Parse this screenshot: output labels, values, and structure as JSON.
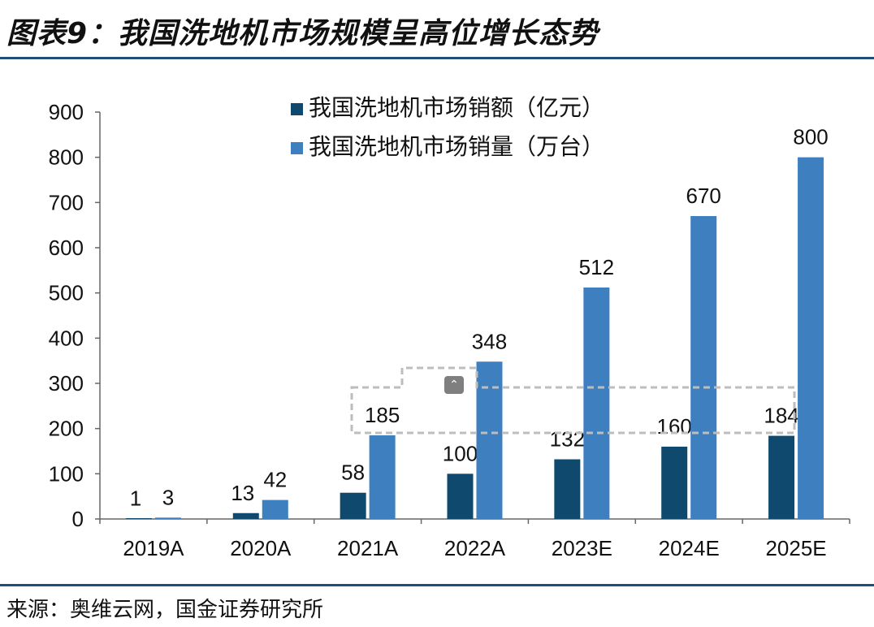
{
  "title": "图表9：我国洗地机市场规模呈高位增长态势",
  "source": "来源：奥维云网，国金证券研究所",
  "colors": {
    "series1": "#0f4a6e",
    "series2": "#3d7fbf",
    "rule": "#1f4e79",
    "axis": "#666666"
  },
  "chart_data": {
    "type": "bar",
    "categories": [
      "2019A",
      "2020A",
      "2021A",
      "2022A",
      "2023E",
      "2024E",
      "2025E"
    ],
    "series": [
      {
        "name": "我国洗地机市场销额（亿元）",
        "values": [
          1,
          13,
          58,
          100,
          132,
          160,
          184
        ],
        "labels": [
          "1",
          "13",
          "58",
          "100",
          "132",
          "160",
          "184"
        ]
      },
      {
        "name": "我国洗地机市场销量（万台）",
        "values": [
          3,
          42,
          185,
          348,
          512,
          670,
          800
        ],
        "labels": [
          "3",
          "42",
          "185",
          "348",
          "512",
          "670",
          "800"
        ]
      }
    ],
    "ylim": [
      0,
      900
    ],
    "yticks": [
      "0",
      "100",
      "200",
      "300",
      "400",
      "500",
      "600",
      "700",
      "800",
      "900"
    ],
    "legend": "top-center",
    "grid": false
  }
}
